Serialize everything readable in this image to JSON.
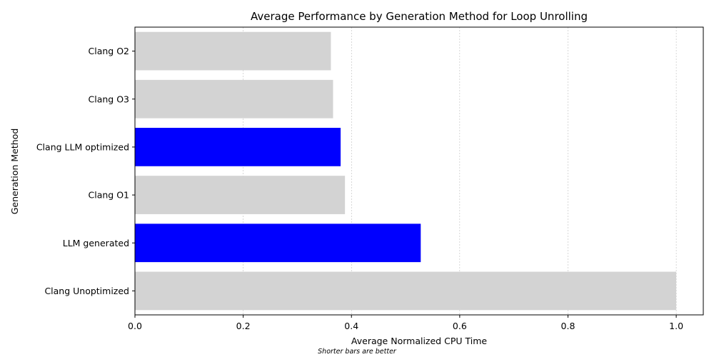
{
  "chart_data": {
    "type": "bar",
    "orientation": "horizontal",
    "title": "Average Performance by Generation Method for Loop Unrolling",
    "xlabel": "Average Normalized CPU Time",
    "ylabel": "Generation Method",
    "note": "Shorter bars are better",
    "xlim": [
      0,
      1.05
    ],
    "xticks": [
      0.0,
      0.2,
      0.4,
      0.6,
      0.8,
      1.0
    ],
    "xtick_labels": [
      "0.0",
      "0.2",
      "0.4",
      "0.6",
      "0.8",
      "1.0"
    ],
    "grid": "x-dashed",
    "categories": [
      "Clang O2",
      "Clang O3",
      "Clang LLM optimized",
      "Clang O1",
      "LLM generated",
      "Clang Unoptimized"
    ],
    "values": [
      0.362,
      0.366,
      0.38,
      0.388,
      0.528,
      1.0
    ],
    "colors": [
      "#d3d3d3",
      "#d3d3d3",
      "#0000ff",
      "#d3d3d3",
      "#0000ff",
      "#d3d3d3"
    ]
  }
}
